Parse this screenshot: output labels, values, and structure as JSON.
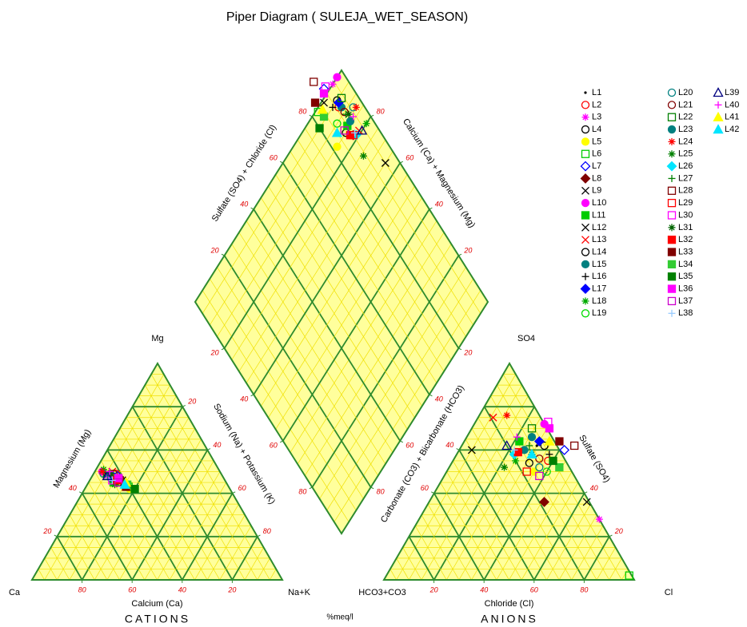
{
  "chart_data": {
    "type": "piper",
    "title": "Piper Diagram ( SULEJA_WET_SEASON)",
    "unit_label": "%meq/l",
    "cations": {
      "title": "CATIONS",
      "vertices": {
        "left": "Ca",
        "top": "Mg",
        "right": "Na+K"
      },
      "bottom": {
        "label": "Calcium (Ca)",
        "ticks": [
          80,
          60,
          40,
          20
        ]
      },
      "left": {
        "label": "Magnesium (Mg)",
        "ticks": [
          20,
          40
        ]
      },
      "right": {
        "label": "Sodium (Na) + Potassium (K)",
        "ticks": [
          20,
          40,
          60,
          80
        ]
      }
    },
    "anions": {
      "title": "ANIONS",
      "vertices": {
        "left": "HCO3+CO3",
        "top": "SO4",
        "right": "Cl"
      },
      "bottom": {
        "label": "Chloride (Cl)",
        "ticks": [
          20,
          40,
          60,
          80
        ]
      },
      "left": {
        "label": "Carbonate (CO3) + Bicarbonate (HCO3)",
        "ticks": [
          40,
          60
        ]
      },
      "right": {
        "label": "Sulfate (SO4)",
        "ticks": [
          40,
          20
        ]
      }
    },
    "diamond": {
      "upper_left": {
        "label": "Sulfate (SO4) + Chloride (Cl)",
        "ticks": [
          20,
          40,
          60,
          80
        ]
      },
      "upper_right": {
        "label": "Calcium (Ca) + Magnesium (Mg)",
        "ticks": [
          80,
          60,
          40,
          20
        ]
      },
      "lower_left": {
        "ticks": [
          20,
          40,
          60,
          80
        ]
      },
      "lower_right": {
        "ticks": [
          80,
          60,
          40,
          20
        ]
      }
    },
    "series": [
      {
        "name": "L1",
        "color": "#000000",
        "marker": "dot",
        "values": {
          "ca": 44,
          "mg": 47,
          "cl": 30,
          "so4": 62
        }
      },
      {
        "name": "L2",
        "color": "#ff0000",
        "marker": "circle",
        "values": {
          "ca": 42,
          "mg": 49,
          "cl": 38,
          "so4": 55
        }
      },
      {
        "name": "L3",
        "color": "#ff00ff",
        "marker": "star",
        "values": {
          "ca": 46,
          "mg": 48,
          "cl": 72,
          "so4": 28
        }
      },
      {
        "name": "L4",
        "color": "#000000",
        "marker": "circle",
        "values": {
          "ca": 43,
          "mg": 45,
          "cl": 31,
          "so4": 54
        }
      },
      {
        "name": "L5",
        "color": "#ffff00",
        "marker": "fcircle",
        "values": {
          "ca": 40,
          "mg": 42,
          "cl": 35,
          "so4": 50
        }
      },
      {
        "name": "L6",
        "color": "#00cc00",
        "marker": "square",
        "values": {
          "ca": 40,
          "mg": 43,
          "cl": 97,
          "so4": 2
        }
      },
      {
        "name": "L7",
        "color": "#0000ff",
        "marker": "diamond",
        "values": {
          "ca": 42,
          "mg": 48,
          "cl": 42,
          "so4": 60
        }
      },
      {
        "name": "L8",
        "color": "#800000",
        "marker": "fdiamond",
        "values": {
          "ca": 44,
          "mg": 46,
          "cl": 46,
          "so4": 36
        }
      },
      {
        "name": "L9",
        "color": "#000000",
        "marker": "x",
        "values": {
          "ca": 41,
          "mg": 46,
          "cl": 63,
          "so4": 36
        }
      },
      {
        "name": "L10",
        "color": "#ff00ff",
        "marker": "fcircle",
        "values": {
          "ca": 47,
          "mg": 50,
          "cl": 28,
          "so4": 72
        }
      },
      {
        "name": "L11",
        "color": "#00cc00",
        "marker": "fsquare",
        "values": {
          "ca": 45,
          "mg": 45,
          "cl": 22,
          "so4": 64
        }
      },
      {
        "name": "L12",
        "color": "#000000",
        "marker": "x",
        "values": {
          "ca": 46,
          "mg": 49,
          "cl": 5,
          "so4": 60
        }
      },
      {
        "name": "L13",
        "color": "#ff0000",
        "marker": "x",
        "values": {
          "ca": 43,
          "mg": 50,
          "cl": 6,
          "so4": 75
        }
      },
      {
        "name": "L14",
        "color": "#000000",
        "marker": "circle",
        "values": {
          "ca": 45,
          "mg": 47,
          "cl": 33,
          "so4": 62
        }
      },
      {
        "name": "L15",
        "color": "#008080",
        "marker": "fcircle",
        "values": {
          "ca": 44,
          "mg": 48,
          "cl": 26,
          "so4": 66
        }
      },
      {
        "name": "L16",
        "color": "#000000",
        "marker": "plus",
        "values": {
          "ca": 43,
          "mg": 46,
          "cl": 37,
          "so4": 58
        }
      },
      {
        "name": "L17",
        "color": "#0000ff",
        "marker": "fdiamond",
        "values": {
          "ca": 44,
          "mg": 48,
          "cl": 30,
          "so4": 64
        }
      },
      {
        "name": "L18",
        "color": "#00aa00",
        "marker": "star",
        "values": {
          "ca": 46,
          "mg": 51,
          "cl": 25,
          "so4": 55
        }
      },
      {
        "name": "L19",
        "color": "#00dd00",
        "marker": "circle",
        "values": {
          "ca": 42,
          "mg": 45,
          "cl": 40,
          "so4": 50
        }
      },
      {
        "name": "L20",
        "color": "#008080",
        "marker": "circle",
        "values": {
          "ca": 47,
          "mg": 49,
          "cl": 36,
          "so4": 52
        }
      },
      {
        "name": "L21",
        "color": "#800000",
        "marker": "circle",
        "values": {
          "ca": 43,
          "mg": 49,
          "cl": 34,
          "so4": 56
        }
      },
      {
        "name": "L22",
        "color": "#008000",
        "marker": "square",
        "values": {
          "ca": 46,
          "mg": 48,
          "cl": 24,
          "so4": 70
        }
      },
      {
        "name": "L23",
        "color": "#008080",
        "marker": "fcircle",
        "values": {
          "ca": 45,
          "mg": 47,
          "cl": 26,
          "so4": 60
        }
      },
      {
        "name": "L24",
        "color": "#ff0000",
        "marker": "star",
        "values": {
          "ca": 47,
          "mg": 50,
          "cl": 11,
          "so4": 76
        }
      },
      {
        "name": "L25",
        "color": "#008000",
        "marker": "star",
        "values": {
          "ca": 45,
          "mg": 44,
          "cl": 22,
          "so4": 52
        }
      },
      {
        "name": "L26",
        "color": "#00e5ff",
        "marker": "fdiamond",
        "values": {
          "ca": 44,
          "mg": 47,
          "cl": 23,
          "so4": 58
        }
      },
      {
        "name": "L27",
        "color": "#008000",
        "marker": "plus",
        "values": {
          "ca": 44,
          "mg": 48,
          "cl": 27,
          "so4": 62
        }
      },
      {
        "name": "L28",
        "color": "#800000",
        "marker": "square",
        "values": {
          "ca": 42,
          "mg": 46,
          "cl": 45,
          "so4": 62
        }
      },
      {
        "name": "L29",
        "color": "#ff0000",
        "marker": "square",
        "values": {
          "ca": 43,
          "mg": 47,
          "cl": 32,
          "so4": 50
        }
      },
      {
        "name": "L30",
        "color": "#ff00ff",
        "marker": "square",
        "values": {
          "ca": 45,
          "mg": 46,
          "cl": 29,
          "so4": 73
        }
      },
      {
        "name": "L31",
        "color": "#006400",
        "marker": "star",
        "values": {
          "ca": 44,
          "mg": 49,
          "cl": 30,
          "so4": 58
        }
      },
      {
        "name": "L32",
        "color": "#ff0000",
        "marker": "fsquare",
        "values": {
          "ca": 43,
          "mg": 46,
          "cl": 24,
          "so4": 59
        }
      },
      {
        "name": "L33",
        "color": "#800000",
        "marker": "fsquare",
        "values": {
          "ca": 41,
          "mg": 43,
          "cl": 38,
          "so4": 64
        }
      },
      {
        "name": "L34",
        "color": "#33cc33",
        "marker": "fsquare",
        "values": {
          "ca": 40,
          "mg": 44,
          "cl": 44,
          "so4": 52
        }
      },
      {
        "name": "L35",
        "color": "#008000",
        "marker": "fsquare",
        "values": {
          "ca": 38,
          "mg": 42,
          "cl": 40,
          "so4": 55
        }
      },
      {
        "name": "L36",
        "color": "#ff00ff",
        "marker": "fsquare",
        "values": {
          "ca": 42,
          "mg": 47,
          "cl": 31,
          "so4": 70
        }
      },
      {
        "name": "L37",
        "color": "#cc00cc",
        "marker": "square",
        "values": {
          "ca": 43,
          "mg": 45,
          "cl": 38,
          "so4": 48
        }
      },
      {
        "name": "L38",
        "color": "#99ccff",
        "marker": "plus",
        "values": {
          "ca": 45,
          "mg": 46,
          "cl": 22,
          "so4": 60
        }
      },
      {
        "name": "L39",
        "color": "#000080",
        "marker": "triangle",
        "values": {
          "ca": 46,
          "mg": 48,
          "cl": 18,
          "so4": 62
        }
      },
      {
        "name": "L40",
        "color": "#ff00ff",
        "marker": "plus",
        "values": {
          "ca": 44,
          "mg": 50,
          "cl": 20,
          "so4": 66
        }
      },
      {
        "name": "L41",
        "color": "#ffff00",
        "marker": "ftriangle",
        "values": {
          "ca": 40,
          "mg": 45,
          "cl": 34,
          "so4": 64
        }
      },
      {
        "name": "L42",
        "color": "#00e5ff",
        "marker": "ftriangle",
        "values": {
          "ca": 41,
          "mg": 44,
          "cl": 30,
          "so4": 58
        }
      }
    ]
  }
}
